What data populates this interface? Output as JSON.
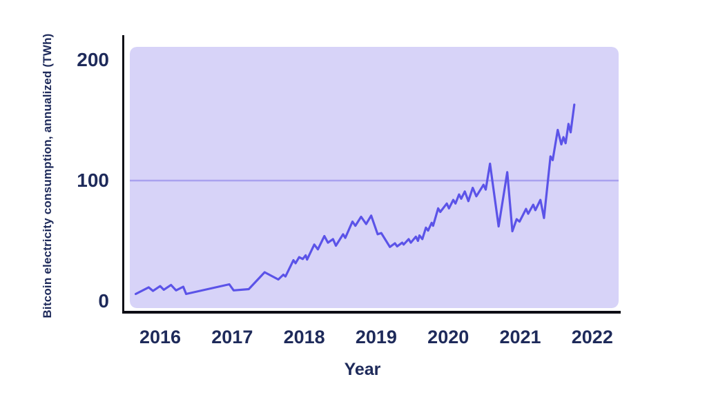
{
  "page": {
    "background": "#ffffff"
  },
  "chart_data": {
    "type": "line",
    "title": "",
    "xlabel": "Year",
    "ylabel": "Bitcoin electricity consumption, annualized (TWh)",
    "legend": "none",
    "grid": "horizontal line at y=100 only",
    "xticks": [
      2016,
      2017,
      2018,
      2019,
      2020,
      2021,
      2022
    ],
    "yticks": [
      0,
      100,
      200
    ],
    "xlim": [
      2015.578,
      2022.366
    ],
    "ylim": [
      -5.71,
      210.86
    ],
    "gridlines_y": [
      100
    ],
    "colors": {
      "line": "#5b53e8",
      "plot_bg": "#d7d3f8",
      "gridline": "#a9a1ee",
      "axis": "#0d0d15",
      "text": "#1e2a5a",
      "page_bg": "#ffffff"
    },
    "series": [
      {
        "name": "Bitcoin electricity consumption, annualized (TWh)",
        "x": [
          2015.66,
          2015.84,
          2015.9,
          2016.0,
          2016.05,
          2016.15,
          2016.22,
          2016.32,
          2016.36,
          2016.96,
          2017.02,
          2017.23,
          2017.45,
          2017.64,
          2017.71,
          2017.74,
          2017.85,
          2017.88,
          2017.93,
          2017.98,
          2018.02,
          2018.04,
          2018.14,
          2018.19,
          2018.28,
          2018.33,
          2018.4,
          2018.44,
          2018.54,
          2018.57,
          2018.67,
          2018.71,
          2018.79,
          2018.86,
          2018.93,
          2019.02,
          2019.07,
          2019.19,
          2019.26,
          2019.29,
          2019.36,
          2019.38,
          2019.45,
          2019.48,
          2019.55,
          2019.58,
          2019.6,
          2019.64,
          2019.69,
          2019.72,
          2019.77,
          2019.79,
          2019.86,
          2019.89,
          2019.98,
          2020.01,
          2020.07,
          2020.1,
          2020.15,
          2020.18,
          2020.23,
          2020.28,
          2020.34,
          2020.39,
          2020.49,
          2020.52,
          2020.58,
          2020.7,
          2020.82,
          2020.89,
          2020.95,
          2020.99,
          2021.08,
          2021.11,
          2021.18,
          2021.21,
          2021.28,
          2021.33,
          2021.42,
          2021.45,
          2021.52,
          2021.57,
          2021.6,
          2021.63,
          2021.67,
          2021.7,
          2021.75
        ],
        "y": [
          6,
          11.5,
          8.5,
          12.5,
          9.5,
          13.5,
          9,
          12,
          6,
          14,
          9,
          10,
          24,
          18,
          22,
          20.5,
          34,
          31.5,
          36.5,
          35,
          38,
          34.5,
          47,
          43,
          54,
          48.5,
          51.5,
          46,
          55.5,
          52.5,
          66,
          62.5,
          70,
          64,
          71,
          55.5,
          56.5,
          45,
          48,
          45.5,
          48.5,
          47,
          51.5,
          48.5,
          53.5,
          50,
          54.5,
          51.5,
          61,
          58.5,
          65,
          62.5,
          77,
          74,
          81,
          77,
          84,
          81,
          88.5,
          85,
          91,
          83,
          94,
          87,
          96.5,
          92.5,
          114,
          62,
          107,
          58,
          68,
          66,
          76.5,
          72.5,
          80,
          75.5,
          84,
          69,
          120,
          117,
          142,
          130,
          136,
          131,
          147,
          140,
          163
        ]
      }
    ]
  }
}
